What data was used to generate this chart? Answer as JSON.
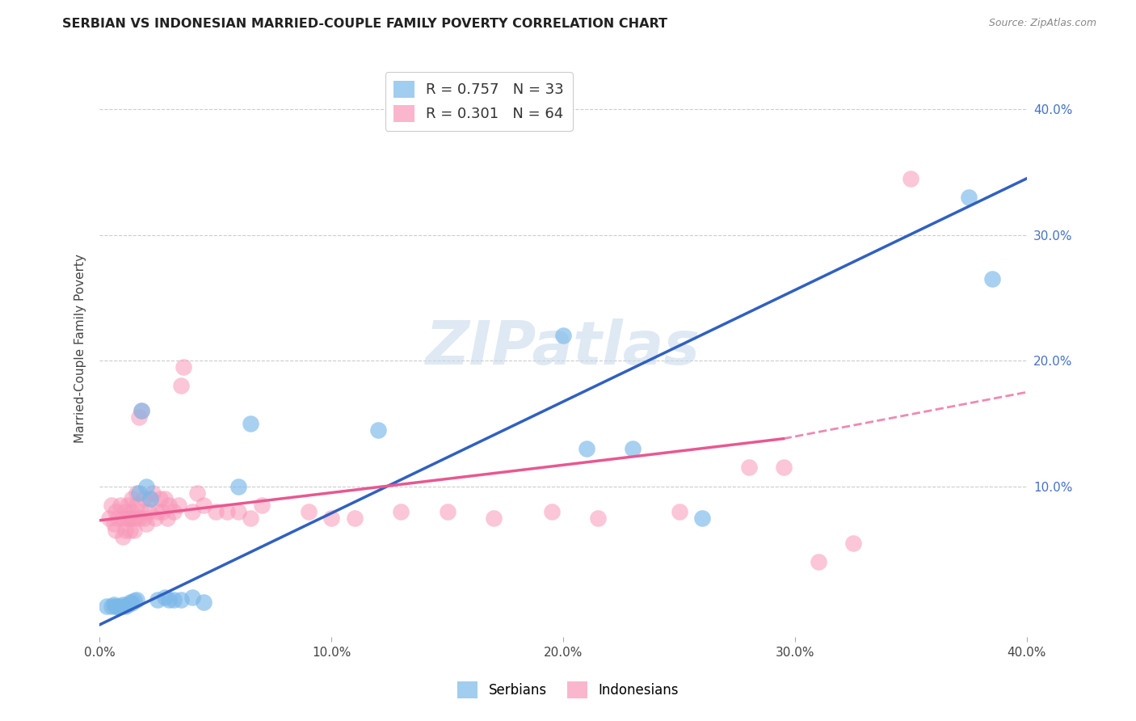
{
  "title": "SERBIAN VS INDONESIAN MARRIED-COUPLE FAMILY POVERTY CORRELATION CHART",
  "source": "Source: ZipAtlas.com",
  "ylabel": "Married-Couple Family Poverty",
  "xlim": [
    0.0,
    0.4
  ],
  "ylim": [
    -0.02,
    0.44
  ],
  "xticks": [
    0.0,
    0.1,
    0.2,
    0.3,
    0.4
  ],
  "yticks": [
    0.1,
    0.2,
    0.3,
    0.4
  ],
  "xticklabels": [
    "0.0%",
    "10.0%",
    "20.0%",
    "30.0%",
    "40.0%"
  ],
  "yticklabels": [
    "10.0%",
    "20.0%",
    "30.0%",
    "40.0%"
  ],
  "watermark": "ZIPatlas",
  "serbian_color": "#7ab8e8",
  "indonesian_color": "#f898b8",
  "serbian_line_color": "#3060c0",
  "indonesian_line_color": "#e85890",
  "background_color": "#ffffff",
  "grid_color": "#cccccc",
  "tick_label_color": "#4472c4",
  "serbian_scatter": [
    [
      0.003,
      0.005
    ],
    [
      0.005,
      0.005
    ],
    [
      0.006,
      0.006
    ],
    [
      0.007,
      0.005
    ],
    [
      0.008,
      0.004
    ],
    [
      0.009,
      0.005
    ],
    [
      0.01,
      0.006
    ],
    [
      0.011,
      0.005
    ],
    [
      0.012,
      0.006
    ],
    [
      0.013,
      0.008
    ],
    [
      0.014,
      0.007
    ],
    [
      0.015,
      0.009
    ],
    [
      0.016,
      0.01
    ],
    [
      0.017,
      0.095
    ],
    [
      0.018,
      0.16
    ],
    [
      0.02,
      0.1
    ],
    [
      0.022,
      0.09
    ],
    [
      0.025,
      0.01
    ],
    [
      0.028,
      0.012
    ],
    [
      0.03,
      0.01
    ],
    [
      0.032,
      0.01
    ],
    [
      0.035,
      0.01
    ],
    [
      0.04,
      0.012
    ],
    [
      0.045,
      0.008
    ],
    [
      0.06,
      0.1
    ],
    [
      0.065,
      0.15
    ],
    [
      0.12,
      0.145
    ],
    [
      0.2,
      0.22
    ],
    [
      0.21,
      0.13
    ],
    [
      0.23,
      0.13
    ],
    [
      0.26,
      0.075
    ],
    [
      0.375,
      0.33
    ],
    [
      0.385,
      0.265
    ]
  ],
  "indonesian_scatter": [
    [
      0.004,
      0.075
    ],
    [
      0.005,
      0.085
    ],
    [
      0.006,
      0.07
    ],
    [
      0.007,
      0.08
    ],
    [
      0.007,
      0.065
    ],
    [
      0.008,
      0.075
    ],
    [
      0.009,
      0.085
    ],
    [
      0.01,
      0.075
    ],
    [
      0.01,
      0.06
    ],
    [
      0.011,
      0.08
    ],
    [
      0.011,
      0.065
    ],
    [
      0.012,
      0.075
    ],
    [
      0.012,
      0.085
    ],
    [
      0.013,
      0.075
    ],
    [
      0.013,
      0.065
    ],
    [
      0.014,
      0.08
    ],
    [
      0.014,
      0.09
    ],
    [
      0.015,
      0.075
    ],
    [
      0.015,
      0.065
    ],
    [
      0.016,
      0.085
    ],
    [
      0.016,
      0.095
    ],
    [
      0.017,
      0.075
    ],
    [
      0.017,
      0.155
    ],
    [
      0.018,
      0.16
    ],
    [
      0.018,
      0.08
    ],
    [
      0.019,
      0.09
    ],
    [
      0.019,
      0.075
    ],
    [
      0.02,
      0.07
    ],
    [
      0.021,
      0.08
    ],
    [
      0.022,
      0.09
    ],
    [
      0.023,
      0.095
    ],
    [
      0.024,
      0.075
    ],
    [
      0.025,
      0.08
    ],
    [
      0.026,
      0.09
    ],
    [
      0.027,
      0.08
    ],
    [
      0.028,
      0.09
    ],
    [
      0.029,
      0.075
    ],
    [
      0.03,
      0.085
    ],
    [
      0.032,
      0.08
    ],
    [
      0.034,
      0.085
    ],
    [
      0.035,
      0.18
    ],
    [
      0.036,
      0.195
    ],
    [
      0.04,
      0.08
    ],
    [
      0.042,
      0.095
    ],
    [
      0.045,
      0.085
    ],
    [
      0.05,
      0.08
    ],
    [
      0.055,
      0.08
    ],
    [
      0.06,
      0.08
    ],
    [
      0.065,
      0.075
    ],
    [
      0.07,
      0.085
    ],
    [
      0.09,
      0.08
    ],
    [
      0.1,
      0.075
    ],
    [
      0.11,
      0.075
    ],
    [
      0.13,
      0.08
    ],
    [
      0.15,
      0.08
    ],
    [
      0.17,
      0.075
    ],
    [
      0.195,
      0.08
    ],
    [
      0.215,
      0.075
    ],
    [
      0.25,
      0.08
    ],
    [
      0.28,
      0.115
    ],
    [
      0.295,
      0.115
    ],
    [
      0.31,
      0.04
    ],
    [
      0.325,
      0.055
    ],
    [
      0.35,
      0.345
    ]
  ],
  "serbian_regression": [
    0.0,
    -0.01,
    0.4,
    0.345
  ],
  "indonesian_regression_solid": [
    0.0,
    0.073,
    0.295,
    0.138
  ],
  "indonesian_regression_dashed": [
    0.295,
    0.138,
    0.4,
    0.175
  ]
}
